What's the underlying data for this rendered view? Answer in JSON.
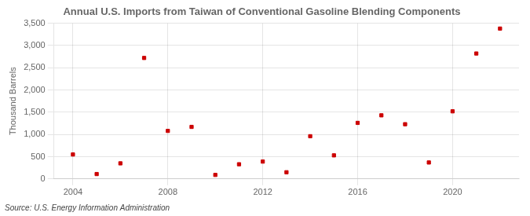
{
  "chart_data": {
    "type": "scatter",
    "title": "Annual U.S. Imports from Taiwan of Conventional Gasoline Blending Components",
    "y_label": "Thousand Barrels",
    "annotations": [
      "Source: U.S. Energy Information Administration"
    ],
    "x": [
      2004,
      2005,
      2006,
      2007,
      2008,
      2009,
      2010,
      2011,
      2012,
      2013,
      2014,
      2015,
      2016,
      2017,
      2018,
      2019,
      2020,
      2021,
      2022
    ],
    "values": [
      550,
      110,
      350,
      2720,
      1080,
      1170,
      90,
      330,
      390,
      150,
      960,
      530,
      1260,
      1430,
      1230,
      370,
      1520,
      2820,
      3380
    ],
    "color": "#cc0000",
    "marker": "square",
    "xlim": [
      2003.2,
      2022.8
    ],
    "xticks": [
      2004,
      2008,
      2012,
      2016,
      2020
    ],
    "ylim": [
      0,
      3500
    ],
    "yticks": [
      0,
      500,
      {
        "value": 1000,
        "label": "1,000"
      },
      {
        "value": 1500,
        "label": "1,500"
      },
      {
        "value": 2000,
        "label": "2,000"
      },
      {
        "value": 2500,
        "label": "2,500"
      },
      {
        "value": 3000,
        "label": "3,000"
      },
      {
        "value": 3500,
        "label": "3,500"
      }
    ],
    "grid": true
  }
}
